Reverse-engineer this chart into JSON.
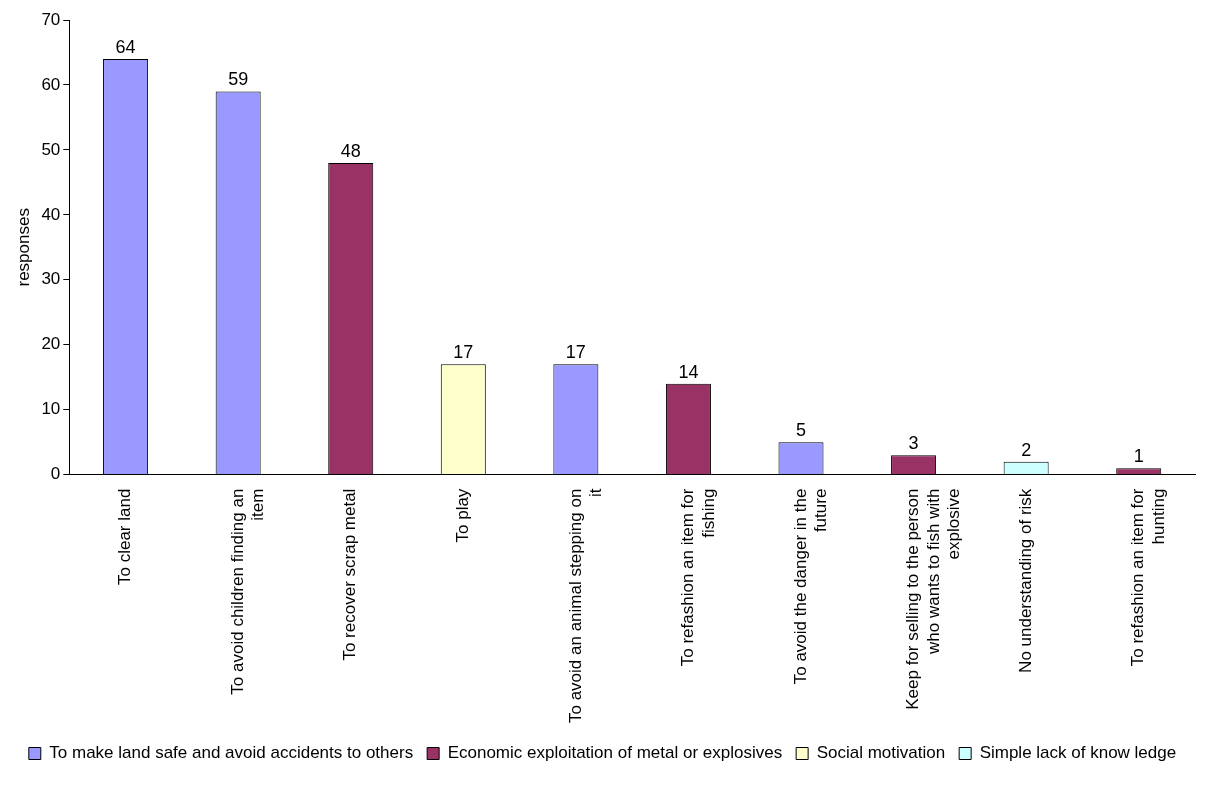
{
  "chart_data": {
    "type": "bar",
    "ylabel": "responses",
    "stacked": true,
    "data_labels": true,
    "legend": "bottom",
    "grid": false,
    "categories": [
      "To clear land",
      "To avoid children finding an item",
      "To recover scrap metal",
      "To play",
      "To avoid an animal stepping on it",
      "To refashion an item for fishing",
      "To avoid the danger in the future",
      "Keep for selling to the person who wants to fish with explosive",
      "No understanding of risk",
      "To refashion an item for hunting"
    ],
    "ylim": [
      0,
      70
    ],
    "yticks": [
      0,
      10,
      20,
      30,
      40,
      50,
      60,
      70
    ],
    "series": [
      {
        "name": "To make land safe and avoid accidents to others",
        "color": "#9999ff",
        "values": [
          64,
          59,
          null,
          null,
          17,
          null,
          5,
          null,
          null,
          null
        ]
      },
      {
        "name": "Economic exploitation of metal or explosives",
        "color": "#993366",
        "values": [
          null,
          null,
          48,
          null,
          null,
          14,
          null,
          3,
          null,
          1
        ]
      },
      {
        "name": "Social motivation",
        "color": "#ffffcc",
        "values": [
          null,
          null,
          null,
          17,
          null,
          null,
          null,
          null,
          null,
          null
        ]
      },
      {
        "name": "Simple lack of know ledge",
        "color": "#ccffff",
        "values": [
          null,
          null,
          null,
          null,
          null,
          null,
          null,
          null,
          2,
          null
        ]
      }
    ]
  }
}
